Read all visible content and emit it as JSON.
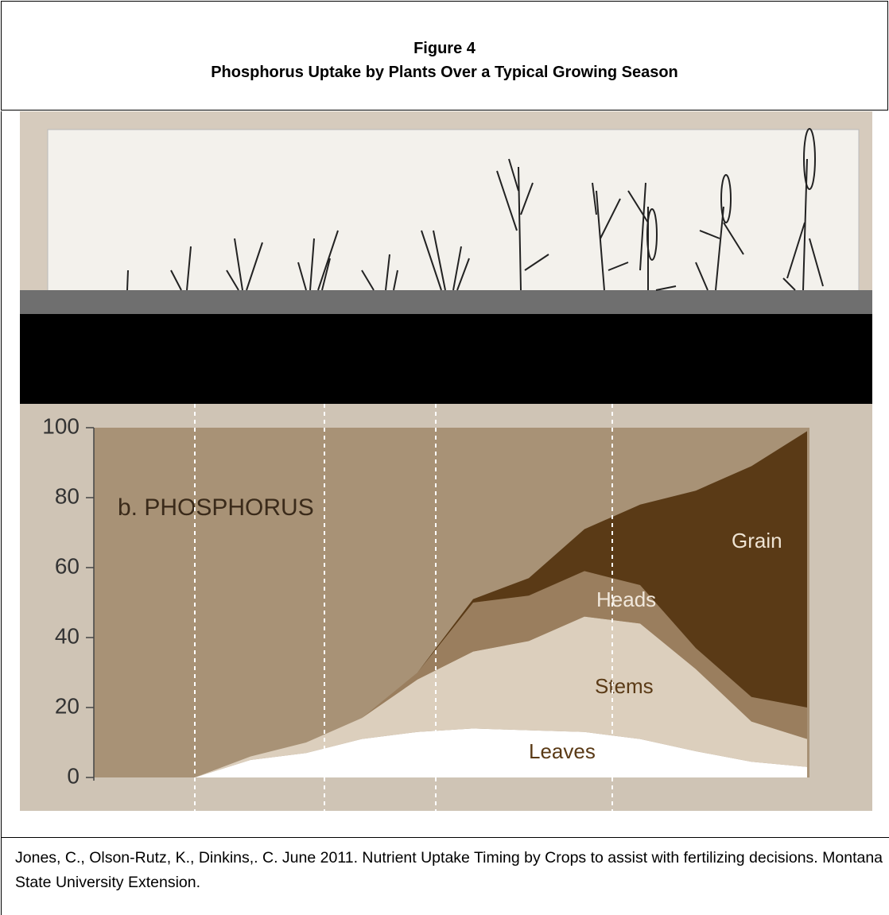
{
  "header": {
    "figure_label": "Figure 4",
    "title": "Phosphorus Uptake by Plants Over a Typical Growing Season"
  },
  "chart_data": {
    "type": "stacked-area",
    "title": "b. PHOSPHORUS",
    "categories": [
      null,
      null,
      null,
      null,
      null,
      null,
      null,
      null,
      null,
      null,
      null,
      null
    ],
    "ylim": [
      0,
      100
    ],
    "yticks": [
      0,
      20,
      40,
      60,
      80,
      100
    ],
    "series": [
      {
        "name": "Leaves",
        "color": "#ffffff",
        "values": [
          0,
          5,
          7,
          11,
          13,
          14,
          13.5,
          13,
          11,
          7.5,
          4.5,
          3
        ]
      },
      {
        "name": "Stems",
        "color": "#dccfbd",
        "values": [
          0,
          1,
          3,
          6,
          15,
          22,
          25.5,
          33,
          33,
          23.5,
          11.5,
          8
        ]
      },
      {
        "name": "Heads",
        "color": "#9a7e5e",
        "values": [
          0,
          0,
          0,
          0,
          2,
          14,
          13,
          13,
          11,
          6,
          7,
          9
        ]
      },
      {
        "name": "Grain",
        "color": "#5a3a16",
        "values": [
          0,
          0,
          0,
          0,
          0,
          1,
          5,
          12,
          23,
          45,
          66,
          79
        ]
      }
    ]
  },
  "citation": "Jones, C., Olson-Rutz, K., Dinkins,. C. June 2011. Nutrient Uptake Timing by Crops to assist with fertilizing decisions. Montana State University Extension."
}
